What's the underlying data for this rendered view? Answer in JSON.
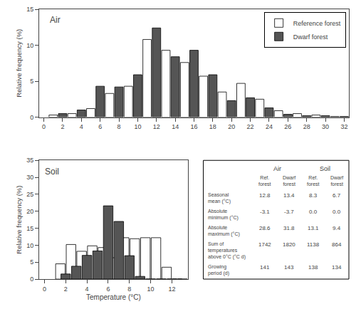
{
  "chart_data": [
    {
      "type": "bar",
      "annotations": [
        "Air"
      ],
      "ylabel": "Relative frequency (%)",
      "series": [
        {
          "name": "Reference forest",
          "color": "white",
          "x": [
            1,
            3,
            5,
            7,
            9,
            11,
            13,
            15,
            17,
            19,
            21,
            23,
            25,
            27,
            29,
            31
          ],
          "values": [
            0.3,
            0.5,
            1.2,
            3.3,
            4.3,
            10.8,
            9.3,
            7.6,
            5.7,
            3.5,
            4.7,
            2.5,
            0.9,
            0.5,
            0.3,
            0.1
          ]
        },
        {
          "name": "Dwarf forest",
          "color": "#555555",
          "x": [
            2,
            4,
            6,
            8,
            10,
            12,
            14,
            16,
            18,
            20,
            22,
            24,
            26,
            28,
            30,
            32
          ],
          "values": [
            0.5,
            1.0,
            4.3,
            4.2,
            5.9,
            12.4,
            8.4,
            9.3,
            5.9,
            2.3,
            2.7,
            1.3,
            0.4,
            0.2,
            0.2,
            0.1
          ]
        }
      ],
      "xlim": [
        -0.5,
        32.5
      ],
      "xticks": [
        0,
        2,
        4,
        6,
        8,
        10,
        12,
        14,
        16,
        18,
        20,
        22,
        24,
        26,
        28,
        30,
        32
      ],
      "ylim": [
        0,
        15
      ],
      "yticks": [
        0,
        5,
        10,
        15
      ],
      "grid": false,
      "legend": "upper right"
    },
    {
      "type": "bar",
      "annotations": [
        "Soil"
      ],
      "xlabel": "Temperature (°C)",
      "ylabel": "Relative frequency (%)",
      "series": [
        {
          "name": "Reference forest",
          "color": "white",
          "x": [
            1.5,
            2.5,
            3.5,
            4.5,
            5.5,
            6.5,
            7.5,
            8.5,
            9.5,
            10.5,
            11.5,
            12.5
          ],
          "values": [
            4.5,
            10.2,
            8.2,
            9.8,
            9.3,
            6.3,
            12.2,
            11.9,
            12.2,
            12.2,
            3.5,
            0.0
          ]
        },
        {
          "name": "Dwarf forest",
          "color": "#555555",
          "x": [
            2.0,
            3.0,
            4.0,
            5.0,
            6.0,
            7.0,
            8.0,
            9.0,
            10.0,
            11.0,
            12.0,
            13.0
          ],
          "values": [
            1.5,
            3.8,
            7.0,
            8.3,
            21.6,
            17.0,
            6.9,
            0.8,
            0.0,
            0.0,
            0.0,
            0.0
          ]
        }
      ],
      "xlim": [
        -0.5,
        13.5
      ],
      "xticks": [
        0,
        2,
        4,
        6,
        8,
        10,
        12
      ],
      "ylim": [
        0,
        35
      ],
      "yticks": [
        0,
        5,
        10,
        15,
        20,
        25,
        30,
        35
      ],
      "grid": false
    },
    {
      "type": "table",
      "column_groups": [
        "Air",
        "Soil"
      ],
      "columns": [
        "Ref.\nforest",
        "Dwarf\nforest",
        "Ref.\nforest",
        "Dwarf\nforest"
      ],
      "rows": [
        [
          "Seasonal\nmean (°C)",
          "12.8",
          "13.4",
          "8.3",
          "6.7"
        ],
        [
          "Absolute\nminimum (°C)",
          "-3.1",
          "-3.7",
          "0.0",
          "0.0"
        ],
        [
          "Absolute\nmaximum (°C)",
          "28.6",
          "31.8",
          "13.1",
          "9.4"
        ],
        [
          "Sum of\ntemperatures\nabove 0°C (°C d)",
          "1742",
          "1820",
          "1138",
          "864"
        ],
        [
          "Growing\nperiod (d)",
          "141",
          "143",
          "138",
          "134"
        ]
      ]
    }
  ]
}
